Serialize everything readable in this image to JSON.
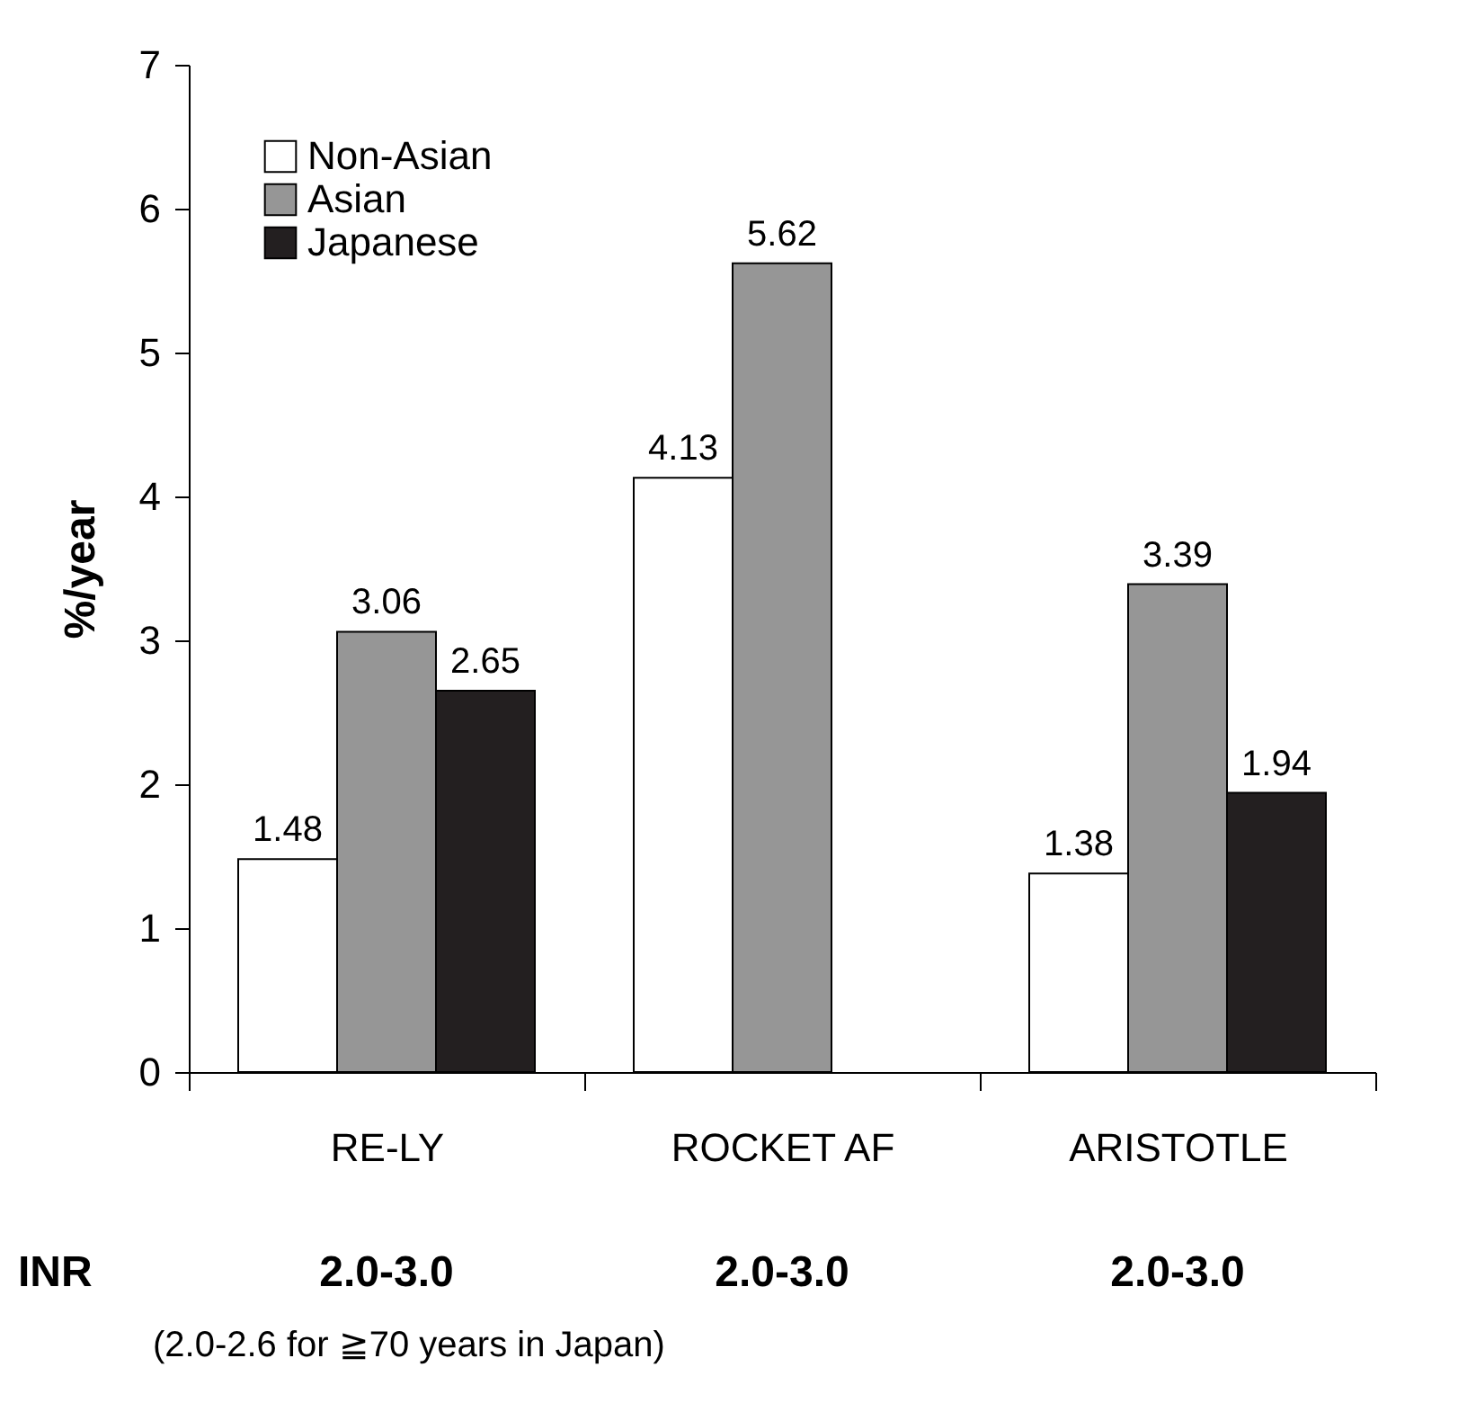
{
  "chart_data": {
    "type": "bar",
    "ylabel": "%/year",
    "categories": [
      "RE-LY",
      "ROCKET AF",
      "ARISTOTLE"
    ],
    "series": [
      {
        "name": "Non-Asian",
        "color": "#ffffff",
        "values": [
          1.48,
          4.13,
          1.38
        ]
      },
      {
        "name": "Asian",
        "color": "#969696",
        "values": [
          3.06,
          5.62,
          3.39
        ]
      },
      {
        "name": "Japanese",
        "color": "#231f20",
        "values": [
          2.65,
          null,
          1.94
        ]
      }
    ],
    "ylim": [
      0,
      7
    ],
    "yticks": [
      0,
      1,
      2,
      3,
      4,
      5,
      6,
      7
    ],
    "grid": false,
    "legend": "top left",
    "data_labels": true,
    "annotations": [
      "INR",
      "2.0-3.0",
      "2.0-3.0",
      "2.0-3.0",
      "(2.0-2.6 for ≧70 years in Japan)"
    ]
  }
}
